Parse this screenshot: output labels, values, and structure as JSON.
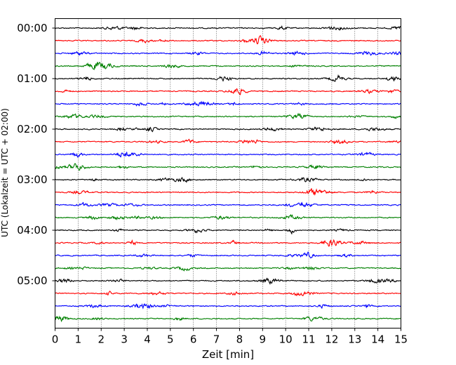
{
  "chart_data": {
    "type": "line",
    "title": "",
    "xlabel": "Zeit  [min]",
    "ylabel": "UTC (Lokalzeit = UTC + 02:00)",
    "xlim": [
      0,
      15
    ],
    "x_ticks": [
      "0",
      "1",
      "2",
      "3",
      "4",
      "5",
      "6",
      "7",
      "8",
      "9",
      "10",
      "11",
      "12",
      "13",
      "14",
      "15"
    ],
    "y_tick_labels": [
      "00:00",
      "01:00",
      "02:00",
      "03:00",
      "04:00",
      "05:00"
    ],
    "grid": "vertical dotted",
    "row_minutes": 15,
    "rows_per_hour": 4,
    "trace_colors": [
      "#000000",
      "#ff0000",
      "#0000ff",
      "#008000"
    ],
    "series": [
      {
        "start": "00:00",
        "color": "#000000"
      },
      {
        "start": "00:15",
        "color": "#ff0000"
      },
      {
        "start": "00:30",
        "color": "#0000ff"
      },
      {
        "start": "00:45",
        "color": "#008000"
      },
      {
        "start": "01:00",
        "color": "#000000"
      },
      {
        "start": "01:15",
        "color": "#ff0000"
      },
      {
        "start": "01:30",
        "color": "#0000ff"
      },
      {
        "start": "01:45",
        "color": "#008000"
      },
      {
        "start": "02:00",
        "color": "#000000"
      },
      {
        "start": "02:15",
        "color": "#ff0000"
      },
      {
        "start": "02:30",
        "color": "#0000ff"
      },
      {
        "start": "02:45",
        "color": "#008000"
      },
      {
        "start": "03:00",
        "color": "#000000"
      },
      {
        "start": "03:15",
        "color": "#ff0000"
      },
      {
        "start": "03:30",
        "color": "#0000ff"
      },
      {
        "start": "03:45",
        "color": "#008000"
      },
      {
        "start": "04:00",
        "color": "#000000"
      },
      {
        "start": "04:15",
        "color": "#ff0000"
      },
      {
        "start": "04:30",
        "color": "#0000ff"
      },
      {
        "start": "04:45",
        "color": "#008000"
      },
      {
        "start": "05:00",
        "color": "#000000"
      },
      {
        "start": "05:15",
        "color": "#ff0000"
      },
      {
        "start": "05:30",
        "color": "#0000ff"
      },
      {
        "start": "05:45",
        "color": "#008000"
      }
    ]
  }
}
